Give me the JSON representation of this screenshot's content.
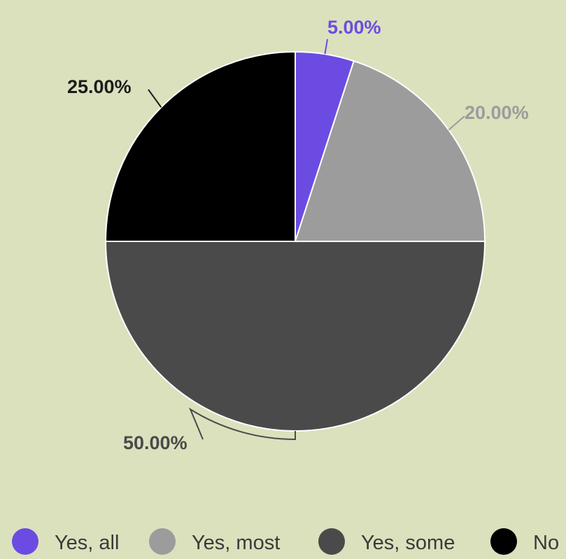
{
  "chart_data": {
    "type": "pie",
    "title": "",
    "slices": [
      {
        "label": "Yes, all",
        "value": 5.0,
        "display": "5.00%",
        "color": "#6c4be3",
        "label_color": "#6c4be3"
      },
      {
        "label": "Yes, most",
        "value": 20.0,
        "display": "20.00%",
        "color": "#9c9c9c",
        "label_color": "#9c9c9c"
      },
      {
        "label": "Yes, some",
        "value": 50.0,
        "display": "50.00%",
        "color": "#4a4a4a",
        "label_color": "#4a4a4a"
      },
      {
        "label": "No",
        "value": 25.0,
        "display": "25.00%",
        "color": "#000000",
        "label_color": "#1c1c1c"
      }
    ],
    "legend_placement": "bottom"
  },
  "colors": {
    "background": "#dbe1bd",
    "slice_border": "#ffffff"
  }
}
